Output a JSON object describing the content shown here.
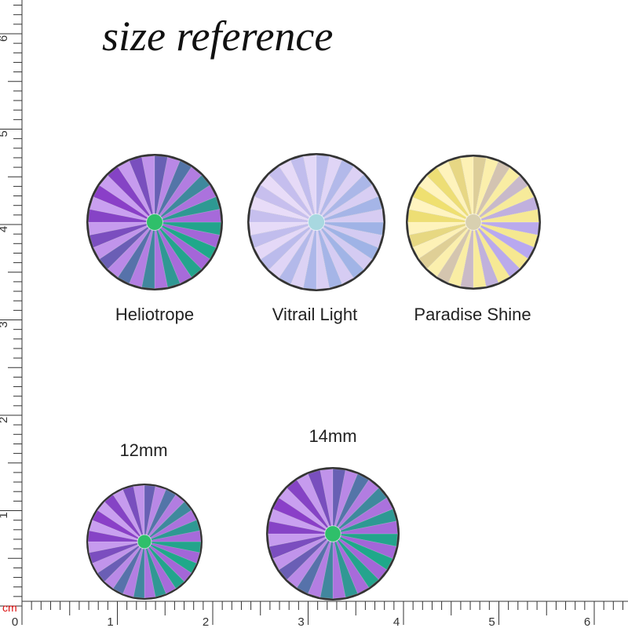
{
  "header": {
    "title": "size reference"
  },
  "gems": [
    {
      "label": "Heliotrope"
    },
    {
      "label": "Vitrail Light"
    },
    {
      "label": "Paradise Shine"
    }
  ],
  "sizes": [
    {
      "label": "12mm"
    },
    {
      "label": "14mm"
    }
  ],
  "ruler": {
    "unit": "cm",
    "bottom_labels": [
      "0",
      "1",
      "2",
      "3",
      "4",
      "5",
      "6"
    ],
    "left_labels": [
      "1",
      "2",
      "3",
      "4",
      "5",
      "6"
    ]
  }
}
